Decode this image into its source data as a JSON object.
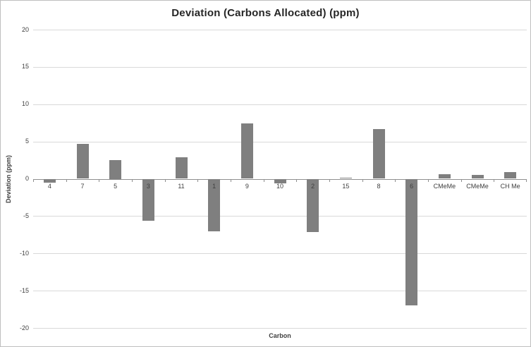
{
  "window": {
    "background": "#ffffff",
    "border_color": "#bfbfbf"
  },
  "chart_data": {
    "type": "bar",
    "title": "Deviation (Carbons Allocated) (ppm)",
    "xlabel": "Carbon",
    "ylabel": "Deviation (ppm)",
    "categories": [
      "4",
      "7",
      "5",
      "3",
      "11",
      "1",
      "9",
      "10",
      "2",
      "15",
      "8",
      "6",
      "CMeMe",
      "CMeMe",
      "CH Me"
    ],
    "values": [
      -0.5,
      4.7,
      2.5,
      -5.6,
      2.9,
      -7.0,
      7.4,
      -0.6,
      -7.1,
      0.1,
      6.7,
      -17.0,
      0.6,
      0.5,
      0.9
    ],
    "ylim": [
      -20,
      20
    ],
    "ytick_step": 5,
    "ytick_labels": [
      "-20",
      "-15",
      "-10",
      "-5",
      "0",
      "5",
      "10",
      "15",
      "20"
    ],
    "grid": true,
    "legend": false,
    "bar_color": "#7f7f7f",
    "gridline_color": "#d9d9d9",
    "axis_line_color": "#8e8e8e",
    "text_color": "#3f3f3f"
  }
}
